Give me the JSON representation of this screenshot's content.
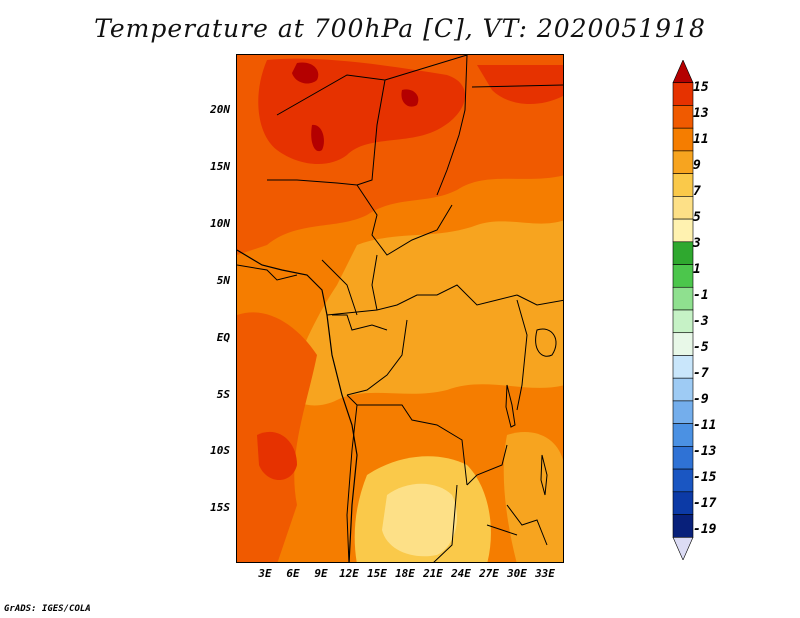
{
  "title": "Temperature at 700hPa [C], VT: 2020051918",
  "footer": "GrADS: IGES/COLA",
  "map": {
    "lat_labels": [
      "20N",
      "15N",
      "10N",
      "5N",
      "EQ",
      "5S",
      "10S",
      "15S"
    ],
    "lon_labels": [
      "3E",
      "6E",
      "9E",
      "12E",
      "15E",
      "18E",
      "21E",
      "24E",
      "27E",
      "30E",
      "33E"
    ]
  },
  "colorbar": {
    "labels": [
      "15",
      "13",
      "11",
      "9",
      "7",
      "5",
      "3",
      "1",
      "-1",
      "-3",
      "-5",
      "-7",
      "-9",
      "-11",
      "-13",
      "-15",
      "-17",
      "-19"
    ],
    "colors": [
      "#b40000",
      "#e63200",
      "#f05a00",
      "#f57d00",
      "#f7a41f",
      "#fac94a",
      "#fde087",
      "#fff2b0",
      "#2fa82f",
      "#4cc64c",
      "#8fe08f",
      "#c6f2c6",
      "#e8f8e8",
      "#c9e6fb",
      "#9ecbf4",
      "#74aeec",
      "#4b91e3",
      "#2f72d5",
      "#1a56c2",
      "#0c3aa6",
      "#08207a",
      "#dcdcf5"
    ]
  }
}
